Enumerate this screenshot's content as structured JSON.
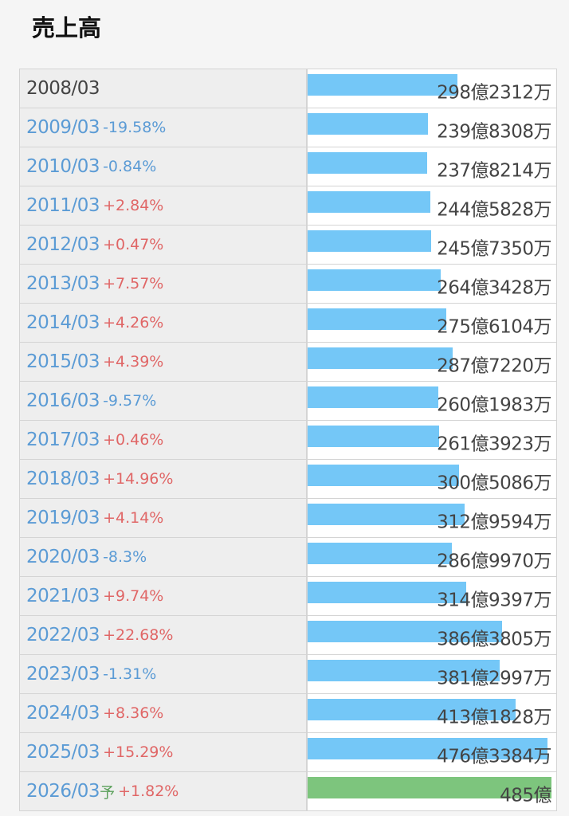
{
  "title": "売上高",
  "colors": {
    "bar": "#74c7f7",
    "forecast_bar": "#7dc57d",
    "positive": "#e06666",
    "negative": "#5b9bd5"
  },
  "rows": [
    {
      "year": "2008/03",
      "change": "",
      "amount": "298億2312万",
      "estimate": ""
    },
    {
      "year": "2009/03",
      "change": "-19.58%",
      "amount": "239億8308万",
      "estimate": ""
    },
    {
      "year": "2010/03",
      "change": "-0.84%",
      "amount": "237億8214万",
      "estimate": ""
    },
    {
      "year": "2011/03",
      "change": "+2.84%",
      "amount": "244億5828万",
      "estimate": ""
    },
    {
      "year": "2012/03",
      "change": "+0.47%",
      "amount": "245億7350万",
      "estimate": ""
    },
    {
      "year": "2013/03",
      "change": "+7.57%",
      "amount": "264億3428万",
      "estimate": ""
    },
    {
      "year": "2014/03",
      "change": "+4.26%",
      "amount": "275億6104万",
      "estimate": ""
    },
    {
      "year": "2015/03",
      "change": "+4.39%",
      "amount": "287億7220万",
      "estimate": ""
    },
    {
      "year": "2016/03",
      "change": "-9.57%",
      "amount": "260億1983万",
      "estimate": ""
    },
    {
      "year": "2017/03",
      "change": "+0.46%",
      "amount": "261億3923万",
      "estimate": ""
    },
    {
      "year": "2018/03",
      "change": "+14.96%",
      "amount": "300億5086万",
      "estimate": ""
    },
    {
      "year": "2019/03",
      "change": "+4.14%",
      "amount": "312億9594万",
      "estimate": ""
    },
    {
      "year": "2020/03",
      "change": "-8.3%",
      "amount": "286億9970万",
      "estimate": ""
    },
    {
      "year": "2021/03",
      "change": "+9.74%",
      "amount": "314億9397万",
      "estimate": ""
    },
    {
      "year": "2022/03",
      "change": "+22.68%",
      "amount": "386億3805万",
      "estimate": ""
    },
    {
      "year": "2023/03",
      "change": "-1.31%",
      "amount": "381億2997万",
      "estimate": ""
    },
    {
      "year": "2024/03",
      "change": "+8.36%",
      "amount": "413億1828万",
      "estimate": ""
    },
    {
      "year": "2025/03",
      "change": "+15.29%",
      "amount": "476億3384万",
      "estimate": ""
    },
    {
      "year": "2026/03",
      "change": "+1.82%",
      "amount": "485億",
      "estimate": "予"
    }
  ],
  "chart_data": {
    "type": "bar",
    "title": "売上高",
    "categories": [
      "2008/03",
      "2009/03",
      "2010/03",
      "2011/03",
      "2012/03",
      "2013/03",
      "2014/03",
      "2015/03",
      "2016/03",
      "2017/03",
      "2018/03",
      "2019/03",
      "2020/03",
      "2021/03",
      "2022/03",
      "2023/03",
      "2024/03",
      "2025/03",
      "2026/03"
    ],
    "values": [
      298.2312,
      239.8308,
      237.8214,
      244.5828,
      245.735,
      264.3428,
      275.6104,
      287.722,
      260.1983,
      261.3923,
      300.5086,
      312.9594,
      286.997,
      314.9397,
      386.3805,
      381.2997,
      413.1828,
      476.3384,
      485
    ],
    "value_unit": "億",
    "orientation": "horizontal",
    "forecast_categories": [
      "2026/03"
    ]
  }
}
